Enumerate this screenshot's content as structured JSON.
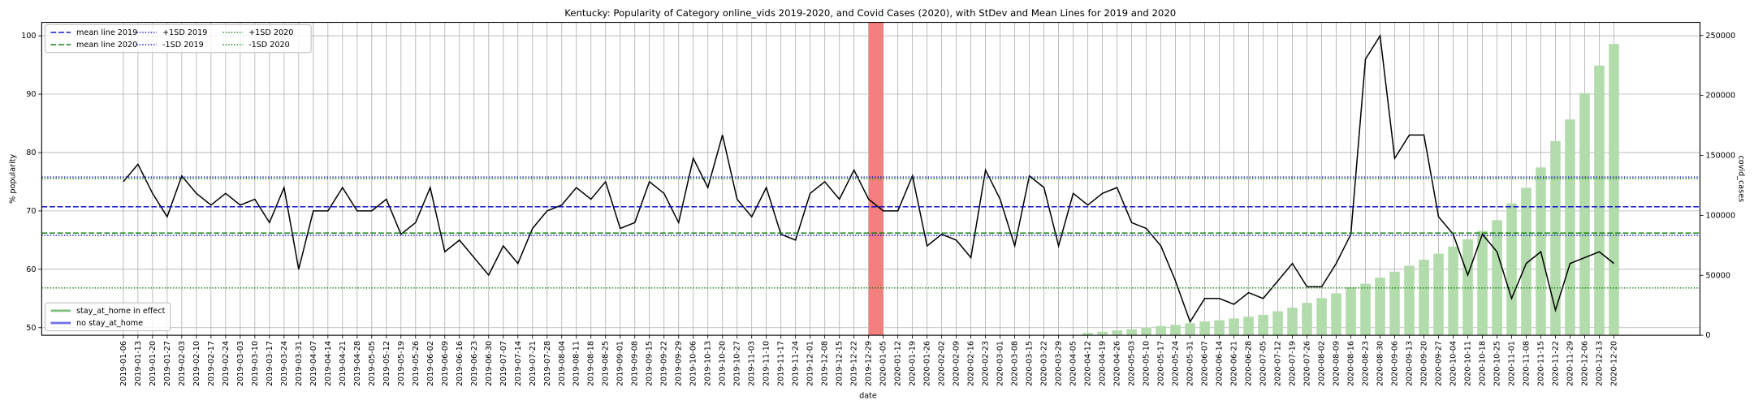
{
  "chart_data": {
    "type": "line",
    "title": "Kentucky: Popularity of Category online_vids 2019-2020, and Covid Cases (2020), with StDev and Mean Lines for 2019 and 2020",
    "xlabel": "date",
    "ylabel": "% popularity",
    "y2label": "covid_cases",
    "categories": [
      "2019-01-06",
      "2019-01-13",
      "2019-01-20",
      "2019-01-27",
      "2019-02-03",
      "2019-02-10",
      "2019-02-17",
      "2019-02-24",
      "2019-03-03",
      "2019-03-10",
      "2019-03-17",
      "2019-03-24",
      "2019-03-31",
      "2019-04-07",
      "2019-04-14",
      "2019-04-21",
      "2019-04-28",
      "2019-05-05",
      "2019-05-12",
      "2019-05-19",
      "2019-05-26",
      "2019-06-02",
      "2019-06-09",
      "2019-06-16",
      "2019-06-23",
      "2019-06-30",
      "2019-07-07",
      "2019-07-14",
      "2019-07-21",
      "2019-07-28",
      "2019-08-04",
      "2019-08-11",
      "2019-08-18",
      "2019-08-25",
      "2019-09-01",
      "2019-09-08",
      "2019-09-15",
      "2019-09-22",
      "2019-09-29",
      "2019-10-06",
      "2019-10-13",
      "2019-10-20",
      "2019-10-27",
      "2019-11-03",
      "2019-11-10",
      "2019-11-17",
      "2019-11-24",
      "2019-12-01",
      "2019-12-08",
      "2019-12-15",
      "2019-12-22",
      "2019-12-29",
      "2020-01-05",
      "2020-01-12",
      "2020-01-19",
      "2020-01-26",
      "2020-02-02",
      "2020-02-09",
      "2020-02-16",
      "2020-02-23",
      "2020-03-01",
      "2020-03-08",
      "2020-03-15",
      "2020-03-22",
      "2020-03-29",
      "2020-04-05",
      "2020-04-12",
      "2020-04-19",
      "2020-04-26",
      "2020-05-03",
      "2020-05-10",
      "2020-05-17",
      "2020-05-24",
      "2020-05-31",
      "2020-06-07",
      "2020-06-14",
      "2020-06-21",
      "2020-06-28",
      "2020-07-05",
      "2020-07-12",
      "2020-07-19",
      "2020-07-26",
      "2020-08-02",
      "2020-08-09",
      "2020-08-16",
      "2020-08-23",
      "2020-08-30",
      "2020-09-06",
      "2020-09-13",
      "2020-09-20",
      "2020-09-27",
      "2020-10-04",
      "2020-10-11",
      "2020-10-18",
      "2020-10-25",
      "2020-11-01",
      "2020-11-08",
      "2020-11-15",
      "2020-11-22",
      "2020-11-29",
      "2020-12-06",
      "2020-12-13",
      "2020-12-20"
    ],
    "series": [
      {
        "type": "bar",
        "axis": "y2",
        "color": "#b3dcac",
        "values": [
          null,
          null,
          null,
          null,
          null,
          null,
          null,
          null,
          null,
          null,
          null,
          null,
          null,
          null,
          null,
          null,
          null,
          null,
          null,
          null,
          null,
          null,
          null,
          null,
          null,
          null,
          null,
          null,
          null,
          null,
          null,
          null,
          null,
          null,
          null,
          null,
          null,
          null,
          null,
          null,
          null,
          null,
          null,
          null,
          null,
          null,
          null,
          null,
          null,
          null,
          null,
          null,
          null,
          null,
          null,
          null,
          null,
          null,
          null,
          null,
          null,
          null,
          null,
          null,
          null,
          null,
          2000,
          3000,
          4100,
          5000,
          6500,
          7700,
          8700,
          10000,
          11500,
          12500,
          14000,
          15500,
          17000,
          20000,
          23000,
          27000,
          31000,
          35000,
          40000,
          43000,
          48000,
          53000,
          58000,
          63000,
          68000,
          74000,
          80000,
          87000,
          96000,
          110000,
          123000,
          140000,
          162000,
          180000,
          202000,
          225000,
          243000
        ]
      },
      {
        "type": "line",
        "color": "#000000",
        "values": [
          75,
          78,
          73,
          69,
          76,
          73,
          71,
          73,
          71,
          72,
          68,
          74,
          60,
          70,
          70,
          74,
          70,
          70,
          72,
          66,
          68,
          74,
          63,
          65,
          62,
          59,
          64,
          61,
          67,
          70,
          71,
          74,
          72,
          75,
          67,
          68,
          75,
          73,
          68,
          79,
          74,
          83,
          72,
          69,
          74,
          66,
          65,
          73,
          75,
          72,
          77,
          72,
          70,
          70,
          76,
          64,
          66,
          65,
          62,
          77,
          72,
          64,
          76,
          74,
          64,
          73,
          71,
          73,
          74,
          68,
          67,
          64,
          58,
          51,
          55,
          55,
          54,
          56,
          55,
          58,
          61,
          57,
          57,
          61,
          66,
          96,
          100,
          79,
          83,
          83,
          69,
          66,
          59,
          66,
          63,
          55,
          61,
          63,
          53,
          61,
          62,
          63,
          61
        ]
      }
    ],
    "reference_lines": [
      {
        "name": "mean line 2019",
        "value": 70.7,
        "color": "#0000cc",
        "style": "dashed"
      },
      {
        "name": "mean line 2020",
        "value": 66.2,
        "color": "#007700",
        "style": "dashed"
      },
      {
        "name": "+1SD 2019",
        "value": 75.8,
        "color": "#0000cc",
        "style": "dotted"
      },
      {
        "name": "-1SD 2019",
        "value": 65.8,
        "color": "#0000cc",
        "style": "dotted"
      },
      {
        "name": "+1SD 2020",
        "value": 75.5,
        "color": "#007700",
        "style": "dotted"
      },
      {
        "name": "-1SD 2020",
        "value": 56.8,
        "color": "#007700",
        "style": "dotted"
      }
    ],
    "span": {
      "from": "2019-12-29",
      "to": "2020-01-05",
      "color": "#f47f7f"
    },
    "legend": "upper left",
    "legend2": [
      {
        "name": "stay_at_home in effect",
        "color": "#7fbf7f"
      },
      {
        "name": "no stay_at_home",
        "color": "#6f6fe8"
      }
    ],
    "ylim": [
      48.7,
      102.3
    ],
    "yticks": [
      50,
      60,
      70,
      80,
      90,
      100
    ],
    "y2lim": [
      0,
      261000
    ],
    "y2ticks": [
      0,
      50000,
      100000,
      150000,
      200000,
      250000
    ],
    "grid": true
  }
}
